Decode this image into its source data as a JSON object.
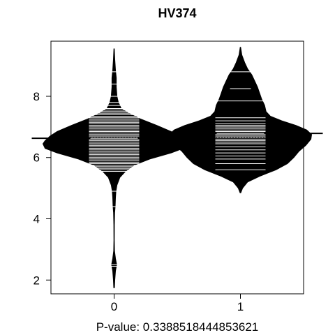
{
  "chart_data": {
    "type": "beanplot",
    "title": "HV374",
    "xlabel": "P-value: 0.3388518444853621",
    "ylabel": "",
    "categories": [
      "0",
      "1"
    ],
    "x_ticks": [
      "0",
      "1"
    ],
    "y_ticks": [
      2,
      4,
      6,
      8
    ],
    "ylim": [
      1.55,
      9.8
    ],
    "overall_mean": 6.66,
    "grid": false,
    "legend": "none",
    "series": [
      {
        "group": "0",
        "mean": 6.63,
        "density": [
          [
            1.75,
            0.005
          ],
          [
            2.0,
            0.01
          ],
          [
            2.3,
            0.02
          ],
          [
            2.5,
            0.035
          ],
          [
            2.7,
            0.02
          ],
          [
            2.95,
            0.006
          ],
          [
            3.3,
            0.003
          ],
          [
            3.8,
            0.004
          ],
          [
            4.2,
            0.008
          ],
          [
            4.4,
            0.015
          ],
          [
            4.7,
            0.02
          ],
          [
            4.9,
            0.025
          ],
          [
            5.1,
            0.04
          ],
          [
            5.35,
            0.08
          ],
          [
            5.55,
            0.16
          ],
          [
            5.75,
            0.28
          ],
          [
            5.95,
            0.5
          ],
          [
            6.15,
            0.8
          ],
          [
            6.3,
            0.97
          ],
          [
            6.45,
            1.0
          ],
          [
            6.55,
            0.97
          ],
          [
            6.7,
            0.9
          ],
          [
            6.85,
            0.8
          ],
          [
            7.05,
            0.6
          ],
          [
            7.25,
            0.38
          ],
          [
            7.45,
            0.2
          ],
          [
            7.6,
            0.1
          ],
          [
            7.8,
            0.06
          ],
          [
            8.0,
            0.04
          ],
          [
            8.3,
            0.03
          ],
          [
            8.6,
            0.03
          ],
          [
            8.85,
            0.02
          ],
          [
            9.2,
            0.01
          ],
          [
            9.55,
            0.003
          ]
        ],
        "points": [
          2.45,
          2.5,
          4.4,
          4.9,
          5.55,
          5.6,
          5.65,
          5.7,
          5.75,
          5.8,
          5.85,
          5.9,
          5.95,
          6.0,
          6.05,
          6.1,
          6.15,
          6.2,
          6.25,
          6.3,
          6.35,
          6.4,
          6.45,
          6.5,
          6.55,
          6.6,
          6.65,
          6.7,
          6.75,
          6.8,
          6.85,
          6.9,
          6.95,
          7.0,
          7.05,
          7.1,
          7.15,
          7.2,
          7.25,
          7.3,
          7.35,
          7.4,
          7.45,
          7.5,
          7.55,
          7.6,
          7.7,
          7.8,
          8.0,
          8.4,
          8.8
        ]
      },
      {
        "group": "1",
        "mean": 6.79,
        "density": [
          [
            4.85,
            0.005
          ],
          [
            5.0,
            0.03
          ],
          [
            5.2,
            0.1
          ],
          [
            5.4,
            0.28
          ],
          [
            5.6,
            0.5
          ],
          [
            5.8,
            0.66
          ],
          [
            6.0,
            0.75
          ],
          [
            6.2,
            0.82
          ],
          [
            6.4,
            0.92
          ],
          [
            6.6,
            0.99
          ],
          [
            6.75,
            1.0
          ],
          [
            6.9,
            0.93
          ],
          [
            7.05,
            0.78
          ],
          [
            7.2,
            0.58
          ],
          [
            7.35,
            0.42
          ],
          [
            7.5,
            0.36
          ],
          [
            7.7,
            0.34
          ],
          [
            7.9,
            0.3
          ],
          [
            8.1,
            0.27
          ],
          [
            8.3,
            0.24
          ],
          [
            8.5,
            0.2
          ],
          [
            8.7,
            0.16
          ],
          [
            8.9,
            0.1
          ],
          [
            9.1,
            0.06
          ],
          [
            9.35,
            0.02
          ],
          [
            9.6,
            0.003
          ]
        ],
        "points": [
          5.6,
          5.8,
          5.95,
          6.05,
          6.15,
          6.25,
          6.35,
          6.45,
          6.5,
          6.55,
          6.6,
          6.65,
          6.7,
          6.75,
          6.8,
          6.85,
          6.9,
          6.95,
          7.0,
          7.05,
          7.1,
          7.2,
          7.3,
          7.85,
          8.25,
          8.8
        ]
      }
    ]
  }
}
